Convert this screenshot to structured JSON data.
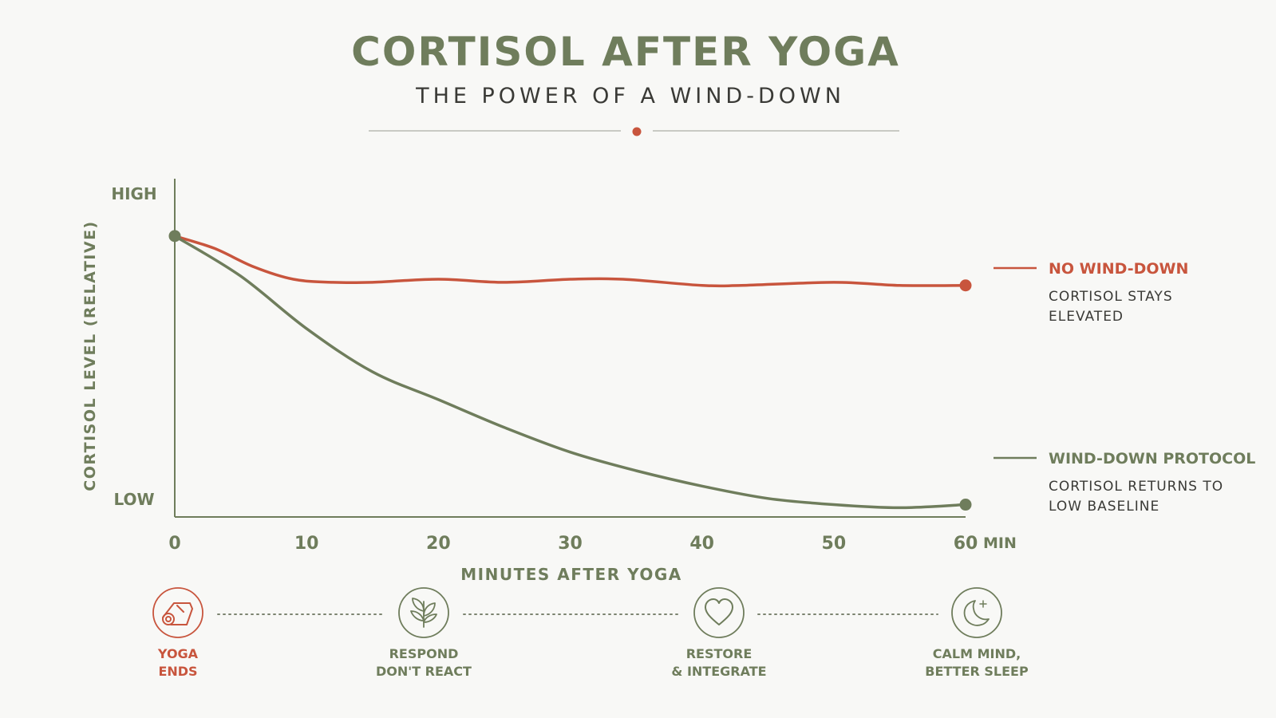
{
  "colors": {
    "green": "#6f7d5c",
    "red": "#c8553d",
    "text_dark": "#3a3a36",
    "rule": "#b9bab3",
    "background": "#f8f8f6"
  },
  "header": {
    "title": "CORTISOL AFTER YOGA",
    "subtitle": "THE POWER OF A WIND-DOWN"
  },
  "chart_data": {
    "type": "line",
    "xlabel": "MINUTES AFTER YOGA",
    "ylabel": "CORTISOL LEVEL (RELATIVE)",
    "x_unit": "MIN",
    "xlim": [
      0,
      60
    ],
    "ylim": [
      0,
      1
    ],
    "x_ticks": [
      0,
      10,
      20,
      30,
      40,
      50,
      60
    ],
    "y_tick_labels": [
      {
        "value": 1,
        "label": "HIGH"
      },
      {
        "value": 0,
        "label": "LOW"
      }
    ],
    "grid": false,
    "legend_position": "right",
    "series": [
      {
        "name": "NO WIND-DOWN",
        "description": "CORTISOL STAYS ELEVATED",
        "color": "#c8553d",
        "x": [
          0,
          3,
          6,
          9,
          12,
          15,
          20,
          25,
          30,
          34,
          40,
          43,
          50,
          55,
          60
        ],
        "y": [
          0.91,
          0.87,
          0.81,
          0.77,
          0.76,
          0.76,
          0.77,
          0.76,
          0.77,
          0.77,
          0.75,
          0.75,
          0.76,
          0.75,
          0.75
        ]
      },
      {
        "name": "WIND-DOWN PROTOCOL",
        "description": "CORTISOL RETURNS TO LOW BASELINE",
        "color": "#6f7d5c",
        "x": [
          0,
          5,
          10,
          15,
          20,
          25,
          30,
          35,
          40,
          45,
          50,
          55,
          60
        ],
        "y": [
          0.91,
          0.78,
          0.61,
          0.47,
          0.38,
          0.29,
          0.21,
          0.15,
          0.1,
          0.06,
          0.04,
          0.03,
          0.04
        ]
      }
    ]
  },
  "timeline": [
    {
      "line1": "YOGA",
      "line2": "ENDS",
      "icon": "yoga-mat-icon"
    },
    {
      "line1": "RESPOND",
      "line2": "DON'T REACT",
      "icon": "sprout-icon"
    },
    {
      "line1": "RESTORE",
      "line2": "& INTEGRATE",
      "icon": "heart-icon"
    },
    {
      "line1": "CALM MIND,",
      "line2": "BETTER SLEEP",
      "icon": "moon-icon"
    }
  ]
}
